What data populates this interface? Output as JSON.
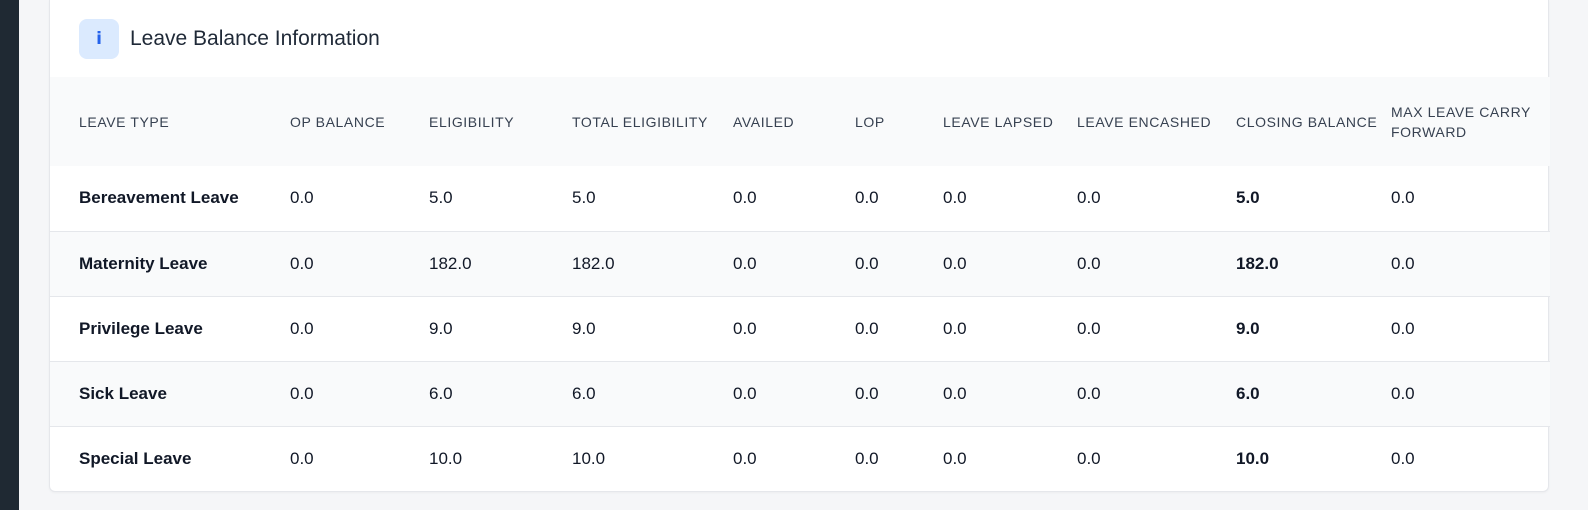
{
  "header": {
    "icon": "info-icon",
    "icon_glyph": "i",
    "title": "Leave Balance Information"
  },
  "table": {
    "columns": [
      "Leave Type",
      "OP Balance",
      "Eligibility",
      "Total Eligibility",
      "Availed",
      "LOP",
      "Leave Lapsed",
      "Leave Encashed",
      "Closing Balance",
      "Max Leave Carry Forward"
    ],
    "rows": [
      [
        "Bereavement Leave",
        "0.0",
        "5.0",
        "5.0",
        "0.0",
        "0.0",
        "0.0",
        "0.0",
        "5.0",
        "0.0"
      ],
      [
        "Maternity Leave",
        "0.0",
        "182.0",
        "182.0",
        "0.0",
        "0.0",
        "0.0",
        "0.0",
        "182.0",
        "0.0"
      ],
      [
        "Privilege Leave",
        "0.0",
        "9.0",
        "9.0",
        "0.0",
        "0.0",
        "0.0",
        "0.0",
        "9.0",
        "0.0"
      ],
      [
        "Sick Leave",
        "0.0",
        "6.0",
        "6.0",
        "0.0",
        "0.0",
        "0.0",
        "0.0",
        "6.0",
        "0.0"
      ],
      [
        "Special Leave",
        "0.0",
        "10.0",
        "10.0",
        "0.0",
        "0.0",
        "0.0",
        "0.0",
        "10.0",
        "0.0"
      ]
    ]
  },
  "colors": {
    "accent": "#2563eb",
    "badge_bg": "#dbeafe",
    "sidebar": "#1f2933"
  }
}
